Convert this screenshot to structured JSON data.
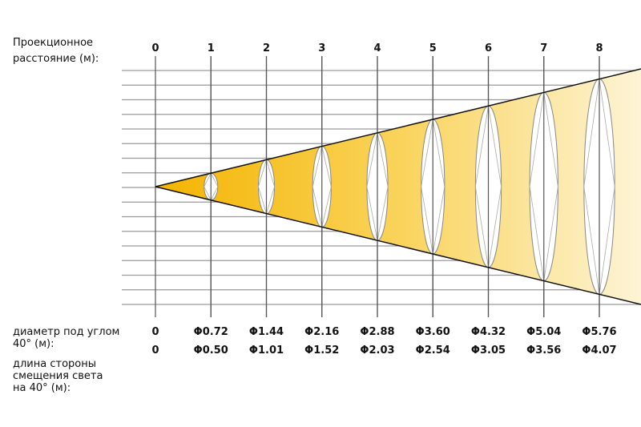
{
  "projection_label": [
    "Проекционное",
    "расстояние (м):"
  ],
  "distances": [
    "0",
    "1",
    "2",
    "3",
    "4",
    "5",
    "6",
    "7",
    "8"
  ],
  "diameter_label": [
    "диаметр под углом",
    "40° (м):"
  ],
  "diameters": [
    "0",
    "Φ0.72",
    "Φ1.44",
    "Φ2.16",
    "Φ2.88",
    "Φ3.60",
    "Φ4.32",
    "Φ5.04",
    "Φ5.76"
  ],
  "side_label": [
    "длина стороны",
    "смещения света",
    "на 40° (м):"
  ],
  "sides": [
    "0",
    "Φ0.50",
    "Φ1.01",
    "Φ1.52",
    "Φ2.03",
    "Φ2.54",
    "Φ3.05",
    "Φ3.56",
    "Φ4.07"
  ]
}
